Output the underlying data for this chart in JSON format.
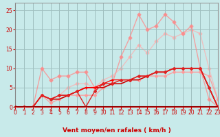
{
  "xlabel": "Vent moyen/en rafales ( km/h )",
  "xlim": [
    0,
    23
  ],
  "ylim": [
    0,
    27
  ],
  "yticks": [
    0,
    5,
    10,
    15,
    20,
    25
  ],
  "xticks": [
    0,
    1,
    2,
    3,
    4,
    5,
    6,
    7,
    8,
    9,
    10,
    11,
    12,
    13,
    14,
    15,
    16,
    17,
    18,
    19,
    20,
    21,
    22,
    23
  ],
  "bg_color": "#c8eaea",
  "grid_color": "#a0c0c0",
  "lines": [
    {
      "x": [
        0,
        1,
        2,
        3,
        4,
        5,
        6,
        7,
        8,
        9,
        10,
        11,
        12,
        13,
        14,
        15,
        16,
        17,
        18,
        19,
        20,
        21,
        22,
        23
      ],
      "y": [
        0,
        0,
        0,
        0,
        0,
        0,
        0,
        0,
        0,
        0,
        0,
        0,
        0,
        0,
        0,
        0,
        0,
        0,
        0,
        0,
        0,
        0,
        0,
        0
      ],
      "color": "#880000",
      "lw": 1.2,
      "marker": null,
      "ms": 0,
      "alpha": 1.0,
      "zorder": 5
    },
    {
      "x": [
        0,
        1,
        2,
        3,
        4,
        5,
        6,
        7,
        8,
        9,
        10,
        11,
        12,
        13,
        14,
        15,
        16,
        17,
        18,
        19,
        20,
        21,
        22,
        23
      ],
      "y": [
        0,
        0,
        0,
        3,
        2,
        3,
        3,
        4,
        5,
        5,
        6,
        7,
        7,
        7,
        8,
        8,
        9,
        9,
        10,
        10,
        10,
        10,
        5,
        0
      ],
      "color": "#ff0000",
      "lw": 1.0,
      "marker": "+",
      "ms": 3.5,
      "alpha": 1.0,
      "zorder": 4
    },
    {
      "x": [
        0,
        1,
        2,
        3,
        4,
        5,
        6,
        7,
        8,
        9,
        10,
        11,
        12,
        13,
        14,
        15,
        16,
        17,
        18,
        19,
        20,
        21,
        22,
        23
      ],
      "y": [
        0,
        0,
        0,
        3,
        2,
        2,
        3,
        4,
        5,
        5,
        5,
        6,
        6,
        7,
        7,
        8,
        9,
        9,
        10,
        10,
        10,
        10,
        5,
        0
      ],
      "color": "#cc0000",
      "lw": 1.2,
      "marker": null,
      "ms": 0,
      "alpha": 1.0,
      "zorder": 3
    },
    {
      "x": [
        0,
        1,
        2,
        3,
        4,
        5,
        6,
        7,
        8,
        9,
        10,
        11,
        12,
        13,
        14,
        15,
        16,
        17,
        18,
        19,
        20,
        21,
        22,
        23
      ],
      "y": [
        0,
        0,
        0,
        3,
        2,
        3,
        3,
        4,
        0,
        4,
        6,
        6,
        7,
        7,
        8,
        8,
        9,
        9,
        10,
        10,
        10,
        10,
        5,
        0
      ],
      "color": "#dd2222",
      "lw": 1.0,
      "marker": "D",
      "ms": 2.0,
      "alpha": 1.0,
      "zorder": 4
    },
    {
      "x": [
        0,
        1,
        2,
        3,
        4,
        5,
        6,
        7,
        8,
        9,
        10,
        11,
        12,
        13,
        14,
        15,
        16,
        17,
        18,
        19,
        20,
        21,
        22,
        23
      ],
      "y": [
        0,
        0,
        0,
        3,
        1,
        2,
        3,
        3,
        3,
        3,
        5,
        6,
        7,
        7,
        7,
        8,
        8,
        8,
        9,
        9,
        9,
        9,
        8,
        2
      ],
      "color": "#ff9999",
      "lw": 1.0,
      "marker": "D",
      "ms": 2.0,
      "alpha": 0.9,
      "zorder": 2
    },
    {
      "x": [
        0,
        1,
        2,
        3,
        4,
        5,
        6,
        7,
        8,
        9,
        10,
        11,
        12,
        13,
        14,
        15,
        16,
        17,
        18,
        19,
        20,
        21,
        22,
        23
      ],
      "y": [
        0,
        0,
        0,
        10,
        7,
        8,
        8,
        9,
        9,
        5,
        6,
        6,
        13,
        18,
        24,
        20,
        21,
        24,
        22,
        19,
        21,
        10,
        2,
        0
      ],
      "color": "#ff8888",
      "lw": 1.0,
      "marker": "D",
      "ms": 2.5,
      "alpha": 0.75,
      "zorder": 2
    },
    {
      "x": [
        0,
        1,
        2,
        3,
        4,
        5,
        6,
        7,
        8,
        9,
        10,
        11,
        12,
        13,
        14,
        15,
        16,
        17,
        18,
        19,
        20,
        21,
        22,
        23
      ],
      "y": [
        0,
        0,
        0,
        3,
        2,
        3,
        5,
        6,
        6,
        5,
        7,
        8,
        10,
        13,
        16,
        14,
        17,
        19,
        18,
        19,
        20,
        19,
        10,
        2
      ],
      "color": "#ffaaaa",
      "lw": 1.0,
      "marker": "D",
      "ms": 2.5,
      "alpha": 0.65,
      "zorder": 1
    }
  ],
  "arrow_color": "#cc3333",
  "xlabel_color": "#cc0000",
  "tick_color": "#cc0000",
  "xlabel_fontsize": 6.5,
  "ylabel_fontsize": 6,
  "tick_fontsize": 5.5
}
